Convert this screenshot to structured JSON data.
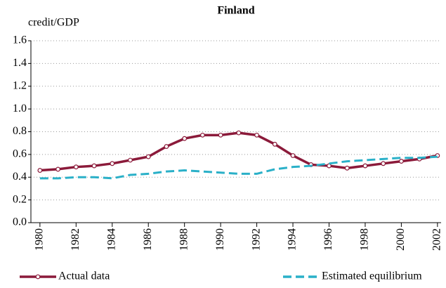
{
  "chart_data": {
    "type": "line",
    "title": "Finland",
    "y_label": "credit/GDP",
    "x": [
      1980,
      1981,
      1982,
      1983,
      1984,
      1985,
      1986,
      1987,
      1988,
      1989,
      1990,
      1991,
      1992,
      1993,
      1994,
      1995,
      1996,
      1997,
      1998,
      1999,
      2000,
      2001,
      2002
    ],
    "series": [
      {
        "name": "Actual data",
        "color": "#8b1a3a",
        "style": "solid-markers",
        "values": [
          0.46,
          0.47,
          0.49,
          0.5,
          0.52,
          0.55,
          0.58,
          0.67,
          0.74,
          0.77,
          0.77,
          0.79,
          0.77,
          0.69,
          0.59,
          0.51,
          0.5,
          0.48,
          0.5,
          0.52,
          0.54,
          0.56,
          0.59
        ]
      },
      {
        "name": "Estimated equilibrium",
        "color": "#2ab0c8",
        "style": "dashed",
        "values": [
          0.39,
          0.39,
          0.4,
          0.4,
          0.39,
          0.42,
          0.43,
          0.45,
          0.46,
          0.45,
          0.44,
          0.43,
          0.43,
          0.47,
          0.49,
          0.5,
          0.52,
          0.54,
          0.55,
          0.56,
          0.57,
          0.57,
          0.58
        ]
      }
    ],
    "xlim": [
      1979.5,
      2002.2
    ],
    "xticks": [
      1980,
      1982,
      1984,
      1986,
      1988,
      1990,
      1992,
      1994,
      1996,
      1998,
      2000,
      2002
    ],
    "ylim": [
      0,
      1.6
    ],
    "yticks": [
      {
        "value": 0,
        "label": "0.0"
      },
      0.2,
      0.4,
      0.6,
      0.8,
      {
        "value": 1,
        "label": "1.0"
      },
      1.2,
      1.4,
      1.6
    ],
    "grid": true,
    "legend": "bottom"
  }
}
